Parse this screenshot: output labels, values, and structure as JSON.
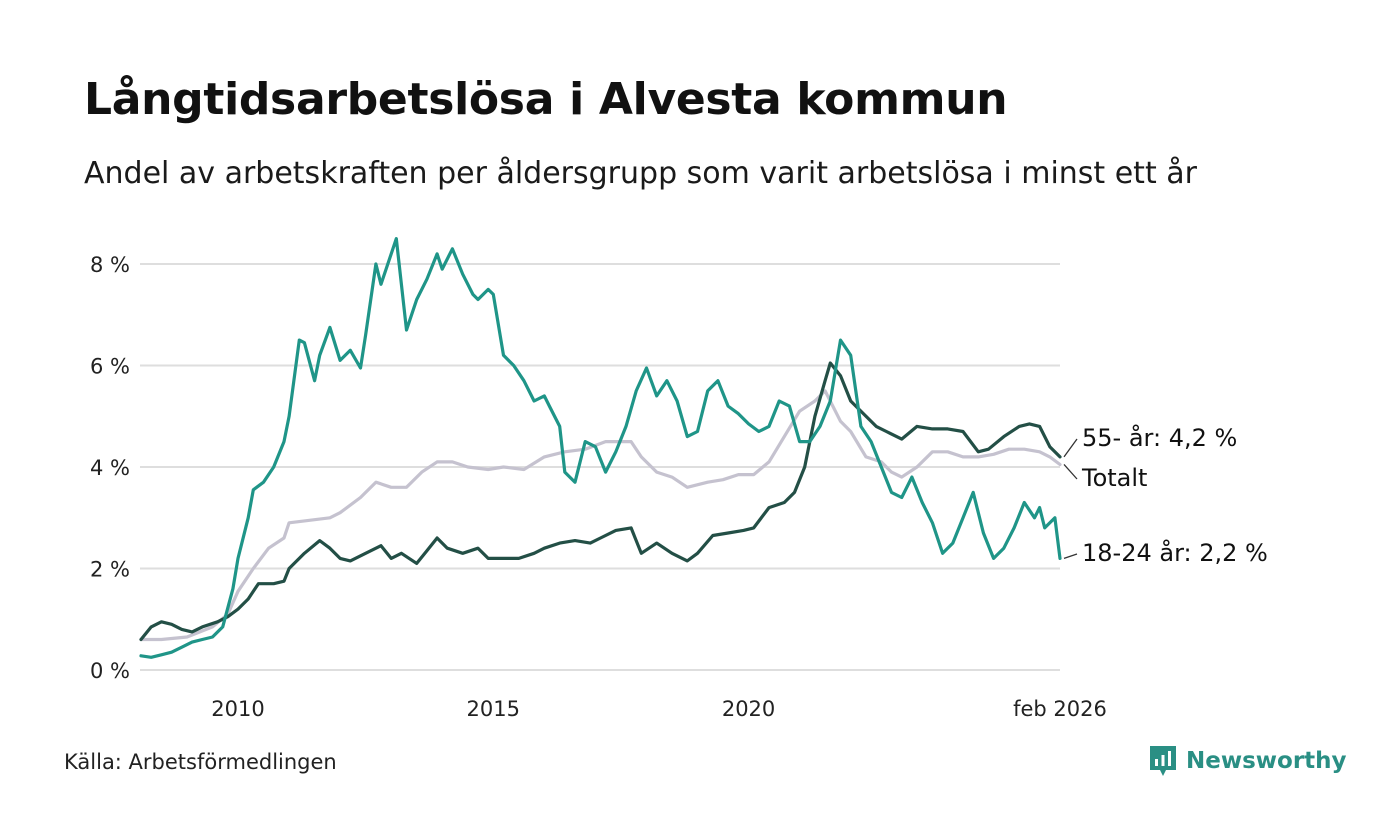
{
  "header": {
    "title": "Långtidsarbetslösa i Alvesta kommun",
    "subtitle": "Andel av arbetskraften per åldersgrupp som varit arbetslösa i minst ett år"
  },
  "footer": {
    "source": "Källa: Arbetsförmedlingen",
    "brand": "Newsworthy",
    "brand_icon": "bar-chart-icon",
    "brand_color": "#2a8f84"
  },
  "chart_data": {
    "type": "line",
    "title": "Långtidsarbetslösa i Alvesta kommun",
    "xlabel": "",
    "ylabel": "",
    "xlim": [
      2008.1,
      2026.1
    ],
    "ylim": [
      0,
      8.5
    ],
    "yticks": [
      0,
      2,
      4,
      6,
      8
    ],
    "ytick_labels": [
      "0 %",
      "2 %",
      "4 %",
      "6 %",
      "8 %"
    ],
    "xticks": [
      2010,
      2015,
      2020,
      2026.1
    ],
    "xtick_labels": [
      "2010",
      "2015",
      "2020",
      "feb 2026"
    ],
    "grid": true,
    "series": [
      {
        "name": "Totalt",
        "end_label": "Totalt",
        "color": "#c5c2cf",
        "points": [
          [
            2008.1,
            0.6
          ],
          [
            2008.5,
            0.6
          ],
          [
            2009.0,
            0.65
          ],
          [
            2009.5,
            0.85
          ],
          [
            2009.8,
            1.1
          ],
          [
            2010.0,
            1.55
          ],
          [
            2010.3,
            2.0
          ],
          [
            2010.6,
            2.4
          ],
          [
            2010.9,
            2.6
          ],
          [
            2011.0,
            2.9
          ],
          [
            2011.4,
            2.95
          ],
          [
            2011.8,
            3.0
          ],
          [
            2012.0,
            3.1
          ],
          [
            2012.4,
            3.4
          ],
          [
            2012.7,
            3.7
          ],
          [
            2013.0,
            3.6
          ],
          [
            2013.3,
            3.6
          ],
          [
            2013.6,
            3.9
          ],
          [
            2013.9,
            4.1
          ],
          [
            2014.2,
            4.1
          ],
          [
            2014.5,
            4.0
          ],
          [
            2014.9,
            3.95
          ],
          [
            2015.2,
            4.0
          ],
          [
            2015.6,
            3.95
          ],
          [
            2016.0,
            4.2
          ],
          [
            2016.4,
            4.3
          ],
          [
            2016.8,
            4.35
          ],
          [
            2017.2,
            4.5
          ],
          [
            2017.7,
            4.5
          ],
          [
            2017.9,
            4.2
          ],
          [
            2018.2,
            3.9
          ],
          [
            2018.5,
            3.8
          ],
          [
            2018.8,
            3.6
          ],
          [
            2019.2,
            3.7
          ],
          [
            2019.5,
            3.75
          ],
          [
            2019.8,
            3.85
          ],
          [
            2020.1,
            3.85
          ],
          [
            2020.4,
            4.1
          ],
          [
            2020.7,
            4.6
          ],
          [
            2021.0,
            5.1
          ],
          [
            2021.3,
            5.3
          ],
          [
            2021.5,
            5.5
          ],
          [
            2021.8,
            4.9
          ],
          [
            2022.0,
            4.7
          ],
          [
            2022.3,
            4.2
          ],
          [
            2022.6,
            4.1
          ],
          [
            2022.8,
            3.9
          ],
          [
            2023.0,
            3.8
          ],
          [
            2023.3,
            4.0
          ],
          [
            2023.6,
            4.3
          ],
          [
            2023.9,
            4.3
          ],
          [
            2024.2,
            4.2
          ],
          [
            2024.5,
            4.2
          ],
          [
            2024.8,
            4.25
          ],
          [
            2025.1,
            4.35
          ],
          [
            2025.4,
            4.35
          ],
          [
            2025.7,
            4.3
          ],
          [
            2025.9,
            4.2
          ],
          [
            2026.1,
            4.05
          ]
        ]
      },
      {
        "name": "55- år",
        "end_label": "55- år: 4,2 %",
        "color": "#234f46",
        "points": [
          [
            2008.1,
            0.6
          ],
          [
            2008.3,
            0.85
          ],
          [
            2008.5,
            0.95
          ],
          [
            2008.7,
            0.9
          ],
          [
            2008.9,
            0.8
          ],
          [
            2009.1,
            0.75
          ],
          [
            2009.3,
            0.85
          ],
          [
            2009.6,
            0.95
          ],
          [
            2009.8,
            1.05
          ],
          [
            2010.0,
            1.2
          ],
          [
            2010.2,
            1.4
          ],
          [
            2010.4,
            1.7
          ],
          [
            2010.7,
            1.7
          ],
          [
            2010.9,
            1.75
          ],
          [
            2011.0,
            2.0
          ],
          [
            2011.3,
            2.3
          ],
          [
            2011.6,
            2.55
          ],
          [
            2011.8,
            2.4
          ],
          [
            2012.0,
            2.2
          ],
          [
            2012.2,
            2.15
          ],
          [
            2012.5,
            2.3
          ],
          [
            2012.8,
            2.45
          ],
          [
            2013.0,
            2.2
          ],
          [
            2013.2,
            2.3
          ],
          [
            2013.5,
            2.1
          ],
          [
            2013.7,
            2.35
          ],
          [
            2013.9,
            2.6
          ],
          [
            2014.1,
            2.4
          ],
          [
            2014.4,
            2.3
          ],
          [
            2014.7,
            2.4
          ],
          [
            2014.9,
            2.2
          ],
          [
            2015.2,
            2.2
          ],
          [
            2015.5,
            2.2
          ],
          [
            2015.8,
            2.3
          ],
          [
            2016.0,
            2.4
          ],
          [
            2016.3,
            2.5
          ],
          [
            2016.6,
            2.55
          ],
          [
            2016.9,
            2.5
          ],
          [
            2017.1,
            2.6
          ],
          [
            2017.4,
            2.75
          ],
          [
            2017.7,
            2.8
          ],
          [
            2017.9,
            2.3
          ],
          [
            2018.2,
            2.5
          ],
          [
            2018.5,
            2.3
          ],
          [
            2018.8,
            2.15
          ],
          [
            2019.0,
            2.3
          ],
          [
            2019.3,
            2.65
          ],
          [
            2019.6,
            2.7
          ],
          [
            2019.9,
            2.75
          ],
          [
            2020.1,
            2.8
          ],
          [
            2020.4,
            3.2
          ],
          [
            2020.7,
            3.3
          ],
          [
            2020.9,
            3.5
          ],
          [
            2021.1,
            4.0
          ],
          [
            2021.3,
            5.0
          ],
          [
            2021.5,
            5.7
          ],
          [
            2021.6,
            6.05
          ],
          [
            2021.8,
            5.8
          ],
          [
            2022.0,
            5.3
          ],
          [
            2022.3,
            5.0
          ],
          [
            2022.5,
            4.8
          ],
          [
            2022.7,
            4.7
          ],
          [
            2023.0,
            4.55
          ],
          [
            2023.3,
            4.8
          ],
          [
            2023.6,
            4.75
          ],
          [
            2023.9,
            4.75
          ],
          [
            2024.2,
            4.7
          ],
          [
            2024.5,
            4.3
          ],
          [
            2024.7,
            4.35
          ],
          [
            2025.0,
            4.6
          ],
          [
            2025.3,
            4.8
          ],
          [
            2025.5,
            4.85
          ],
          [
            2025.7,
            4.8
          ],
          [
            2025.9,
            4.4
          ],
          [
            2026.1,
            4.2
          ]
        ]
      },
      {
        "name": "18-24 år",
        "end_label": "18-24 år: 2,2 %",
        "color": "#1f9588",
        "points": [
          [
            2008.1,
            0.28
          ],
          [
            2008.3,
            0.25
          ],
          [
            2008.5,
            0.3
          ],
          [
            2008.7,
            0.35
          ],
          [
            2008.9,
            0.45
          ],
          [
            2009.1,
            0.55
          ],
          [
            2009.3,
            0.6
          ],
          [
            2009.5,
            0.65
          ],
          [
            2009.7,
            0.85
          ],
          [
            2009.9,
            1.6
          ],
          [
            2010.0,
            2.2
          ],
          [
            2010.2,
            3.0
          ],
          [
            2010.3,
            3.55
          ],
          [
            2010.5,
            3.7
          ],
          [
            2010.7,
            4.0
          ],
          [
            2010.9,
            4.5
          ],
          [
            2011.0,
            5.0
          ],
          [
            2011.2,
            6.5
          ],
          [
            2011.3,
            6.45
          ],
          [
            2011.5,
            5.7
          ],
          [
            2011.6,
            6.2
          ],
          [
            2011.8,
            6.75
          ],
          [
            2012.0,
            6.1
          ],
          [
            2012.2,
            6.3
          ],
          [
            2012.4,
            5.95
          ],
          [
            2012.5,
            6.6
          ],
          [
            2012.7,
            8.0
          ],
          [
            2012.8,
            7.6
          ],
          [
            2013.0,
            8.2
          ],
          [
            2013.1,
            8.5
          ],
          [
            2013.3,
            6.7
          ],
          [
            2013.5,
            7.3
          ],
          [
            2013.7,
            7.7
          ],
          [
            2013.9,
            8.2
          ],
          [
            2014.0,
            7.9
          ],
          [
            2014.2,
            8.3
          ],
          [
            2014.4,
            7.8
          ],
          [
            2014.6,
            7.4
          ],
          [
            2014.7,
            7.3
          ],
          [
            2014.9,
            7.5
          ],
          [
            2015.0,
            7.4
          ],
          [
            2015.2,
            6.2
          ],
          [
            2015.4,
            6.0
          ],
          [
            2015.6,
            5.7
          ],
          [
            2015.8,
            5.3
          ],
          [
            2016.0,
            5.4
          ],
          [
            2016.1,
            5.2
          ],
          [
            2016.3,
            4.8
          ],
          [
            2016.4,
            3.9
          ],
          [
            2016.6,
            3.7
          ],
          [
            2016.8,
            4.5
          ],
          [
            2017.0,
            4.4
          ],
          [
            2017.2,
            3.9
          ],
          [
            2017.4,
            4.3
          ],
          [
            2017.6,
            4.8
          ],
          [
            2017.8,
            5.5
          ],
          [
            2018.0,
            5.95
          ],
          [
            2018.2,
            5.4
          ],
          [
            2018.4,
            5.7
          ],
          [
            2018.6,
            5.3
          ],
          [
            2018.8,
            4.6
          ],
          [
            2019.0,
            4.7
          ],
          [
            2019.2,
            5.5
          ],
          [
            2019.4,
            5.7
          ],
          [
            2019.6,
            5.2
          ],
          [
            2019.8,
            5.05
          ],
          [
            2020.0,
            4.85
          ],
          [
            2020.2,
            4.7
          ],
          [
            2020.4,
            4.8
          ],
          [
            2020.6,
            5.3
          ],
          [
            2020.8,
            5.2
          ],
          [
            2021.0,
            4.5
          ],
          [
            2021.2,
            4.5
          ],
          [
            2021.4,
            4.8
          ],
          [
            2021.6,
            5.3
          ],
          [
            2021.8,
            6.5
          ],
          [
            2022.0,
            6.2
          ],
          [
            2022.2,
            4.8
          ],
          [
            2022.4,
            4.5
          ],
          [
            2022.6,
            4.0
          ],
          [
            2022.8,
            3.5
          ],
          [
            2023.0,
            3.4
          ],
          [
            2023.2,
            3.8
          ],
          [
            2023.4,
            3.3
          ],
          [
            2023.6,
            2.9
          ],
          [
            2023.8,
            2.3
          ],
          [
            2024.0,
            2.5
          ],
          [
            2024.2,
            3.0
          ],
          [
            2024.4,
            3.5
          ],
          [
            2024.6,
            2.7
          ],
          [
            2024.8,
            2.2
          ],
          [
            2025.0,
            2.4
          ],
          [
            2025.2,
            2.8
          ],
          [
            2025.4,
            3.3
          ],
          [
            2025.6,
            3.0
          ],
          [
            2025.7,
            3.2
          ],
          [
            2025.8,
            2.8
          ],
          [
            2026.0,
            3.0
          ],
          [
            2026.1,
            2.2
          ]
        ]
      }
    ]
  }
}
